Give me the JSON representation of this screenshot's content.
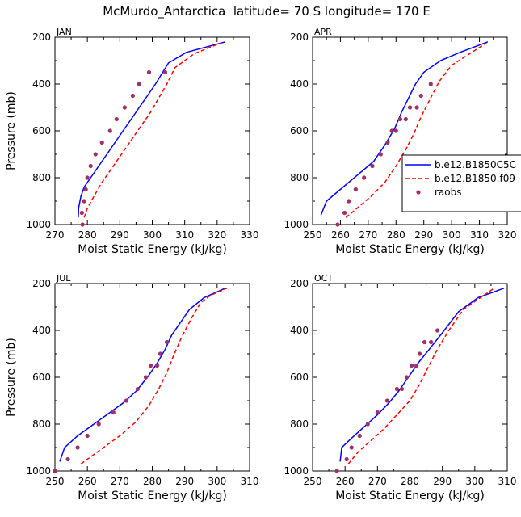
{
  "title": "McMurdo_Antarctica  latitude= 70 S longitude= 170 E",
  "colors": {
    "model_a": "#0000ff",
    "model_b": "#ff0000",
    "raobs": "#a0306a",
    "axis": "#000000"
  },
  "legend": {
    "entries": [
      {
        "label": "b.e12.B1850C5C",
        "style": "solid",
        "color": "#0000ff"
      },
      {
        "label": "b.e12.B1850.f09",
        "style": "dashed",
        "color": "#ff0000"
      },
      {
        "label": "raobs",
        "style": "dots",
        "color": "#a0306a"
      }
    ]
  },
  "chart_data": [
    {
      "type": "line",
      "panel": "JAN",
      "xlabel": "Moist Static Energy (kJ/kg)",
      "ylabel": "Pressure (mb)",
      "xlim": [
        270,
        330
      ],
      "ylim": [
        1000,
        200
      ],
      "xticks": [
        270,
        280,
        290,
        300,
        310,
        320,
        330
      ],
      "yticks": [
        200,
        400,
        600,
        800,
        1000
      ],
      "series": [
        {
          "name": "b.e12.B1850C5C",
          "x": [
            277.2,
            277.3,
            278.0,
            279.0,
            281.0,
            283.5,
            286.0,
            288.5,
            291.0,
            293.5,
            296.0,
            298.5,
            301.0,
            305.0,
            310.5,
            322.5
          ],
          "y": [
            970,
            930,
            880,
            840,
            800,
            750,
            700,
            650,
            600,
            550,
            500,
            450,
            400,
            310,
            265,
            220
          ]
        },
        {
          "name": "b.e12.B1850.f09",
          "x": [
            279.0,
            280.0,
            282.0,
            284.5,
            287.5,
            290.5,
            293.5,
            296.5,
            299.5,
            302.0,
            304.5,
            307.0,
            313.0,
            321.0
          ],
          "y": [
            970,
            930,
            880,
            820,
            760,
            700,
            640,
            580,
            520,
            460,
            400,
            330,
            270,
            225
          ]
        },
        {
          "name": "raobs",
          "x": [
            278.5,
            278.3,
            279.0,
            279.5,
            280.0,
            281.0,
            282.5,
            284.5,
            287.0,
            289.0,
            291.5,
            294.0,
            296.0,
            299.0,
            304.0
          ],
          "y": [
            1000,
            950,
            900,
            850,
            800,
            750,
            700,
            650,
            600,
            550,
            500,
            450,
            400,
            350,
            350
          ]
        }
      ]
    },
    {
      "type": "line",
      "panel": "APR",
      "xlabel": "Moist Static Energy (kJ/kg)",
      "ylabel": "",
      "xlim": [
        250,
        320
      ],
      "ylim": [
        1000,
        200
      ],
      "xticks": [
        250,
        260,
        270,
        280,
        290,
        300,
        310,
        320
      ],
      "yticks": [
        200,
        400,
        600,
        800,
        1000
      ],
      "series": [
        {
          "name": "b.e12.B1850C5C",
          "x": [
            253.0,
            255.0,
            260.0,
            266.0,
            272.0,
            276.0,
            279.5,
            282.0,
            284.5,
            287.0,
            290.0,
            296.0,
            303.0,
            313.0
          ],
          "y": [
            960,
            900,
            850,
            790,
            730,
            660,
            590,
            520,
            460,
            400,
            350,
            300,
            265,
            220
          ]
        },
        {
          "name": "b.e12.B1850.f09",
          "x": [
            262.0,
            266.0,
            271.0,
            276.0,
            280.0,
            283.5,
            286.5,
            289.0,
            292.0,
            295.5,
            300.0,
            312.5
          ],
          "y": [
            970,
            930,
            880,
            820,
            750,
            680,
            610,
            540,
            470,
            390,
            320,
            225
          ]
        },
        {
          "name": "raobs",
          "x": [
            259.0,
            261.5,
            263.0,
            265.5,
            268.5,
            271.5,
            274.5,
            277.0,
            278.5,
            280.0,
            281.5,
            283.5,
            285.0,
            287.5,
            289.0,
            292.5
          ],
          "y": [
            1000,
            950,
            900,
            850,
            800,
            750,
            700,
            650,
            600,
            600,
            550,
            550,
            500,
            500,
            450,
            400
          ]
        }
      ]
    },
    {
      "type": "line",
      "panel": "JUL",
      "xlabel": "Moist Static Energy (kJ/kg)",
      "ylabel": "Pressure (mb)",
      "xlim": [
        250,
        310
      ],
      "ylim": [
        1000,
        200
      ],
      "xticks": [
        250,
        260,
        270,
        280,
        290,
        300,
        310
      ],
      "yticks": [
        200,
        400,
        600,
        800,
        1000
      ],
      "series": [
        {
          "name": "b.e12.B1850C5C",
          "x": [
            251.5,
            253.0,
            257.0,
            261.0,
            266.0,
            271.0,
            275.0,
            278.5,
            281.5,
            284.0,
            286.0,
            288.5,
            291.5,
            296.0,
            302.5
          ],
          "y": [
            960,
            900,
            850,
            810,
            760,
            710,
            660,
            600,
            540,
            480,
            420,
            370,
            310,
            260,
            220
          ]
        },
        {
          "name": "b.e12.B1850.f09",
          "x": [
            258.0,
            264.0,
            270.0,
            275.0,
            279.0,
            282.0,
            284.5,
            286.5,
            289.0,
            292.0,
            295.0,
            298.0,
            303.0
          ],
          "y": [
            970,
            910,
            850,
            790,
            720,
            650,
            580,
            510,
            430,
            350,
            280,
            250,
            220
          ]
        },
        {
          "name": "raobs",
          "x": [
            250.0,
            254.0,
            257.0,
            260.0,
            263.5,
            268.0,
            272.0,
            275.5,
            278.0,
            279.5,
            281.5,
            282.5,
            284.5
          ],
          "y": [
            1000,
            950,
            900,
            850,
            800,
            750,
            700,
            650,
            600,
            550,
            550,
            500,
            450
          ]
        }
      ]
    },
    {
      "type": "line",
      "panel": "OCT",
      "xlabel": "Moist Static Energy (kJ/kg)",
      "ylabel": "",
      "xlim": [
        250,
        310
      ],
      "ylim": [
        1000,
        200
      ],
      "xticks": [
        250,
        260,
        270,
        280,
        290,
        300,
        310
      ],
      "yticks": [
        200,
        400,
        600,
        800,
        1000
      ],
      "series": [
        {
          "name": "b.e12.B1850C5C",
          "x": [
            258.5,
            259.0,
            262.0,
            266.0,
            270.0,
            273.5,
            276.5,
            279.5,
            282.5,
            286.0,
            290.0,
            295.0,
            301.0,
            309.0
          ],
          "y": [
            960,
            900,
            860,
            810,
            760,
            710,
            660,
            600,
            540,
            480,
            410,
            320,
            260,
            220
          ]
        },
        {
          "name": "b.e12.B1850.f09",
          "x": [
            261.0,
            264.0,
            268.0,
            272.0,
            276.0,
            280.0,
            283.0,
            285.5,
            288.5,
            292.0,
            296.5,
            306.0
          ],
          "y": [
            970,
            920,
            870,
            820,
            760,
            700,
            630,
            560,
            480,
            400,
            310,
            220
          ]
        },
        {
          "name": "raobs",
          "x": [
            257.5,
            260.5,
            262.0,
            264.5,
            267.0,
            270.0,
            273.0,
            276.0,
            277.5,
            279.0,
            280.5,
            282.0,
            283.0,
            284.5,
            286.5,
            288.5
          ],
          "y": [
            1000,
            950,
            900,
            850,
            800,
            750,
            700,
            650,
            650,
            600,
            550,
            550,
            500,
            450,
            450,
            400
          ]
        }
      ]
    }
  ]
}
